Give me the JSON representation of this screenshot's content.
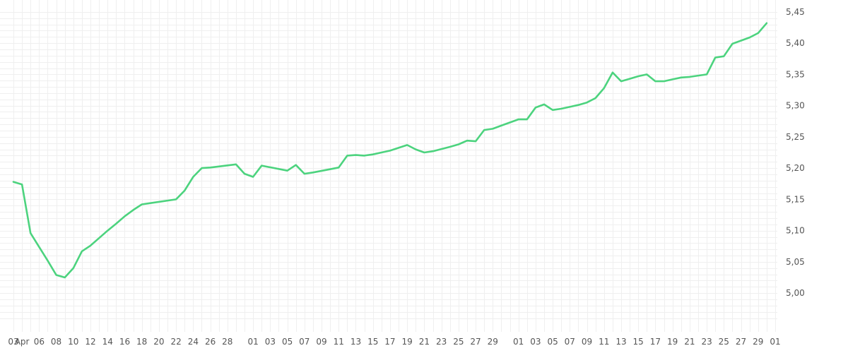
{
  "chart_data": {
    "type": "line",
    "title": "",
    "xlabel": "",
    "ylabel": "",
    "ylim": [
      4.955,
      5.46
    ],
    "y_ticks": [
      "5,00",
      "5,05",
      "5,10",
      "5,15",
      "5,20",
      "5,25",
      "5,30",
      "5,35",
      "5,40",
      "5,45"
    ],
    "y_tick_values": [
      5.0,
      5.05,
      5.1,
      5.15,
      5.2,
      5.25,
      5.3,
      5.35,
      5.4,
      5.45
    ],
    "x_ticks": [
      "03",
      "Apr",
      "06",
      "08",
      "10",
      "12",
      "14",
      "16",
      "18",
      "20",
      "22",
      "24",
      "26",
      "28",
      "01",
      "03",
      "05",
      "07",
      "09",
      "11",
      "13",
      "15",
      "17",
      "19",
      "21",
      "23",
      "25",
      "27",
      "29",
      "01",
      "03",
      "05",
      "07",
      "09",
      "11",
      "13",
      "15",
      "17",
      "19",
      "21",
      "23",
      "25",
      "27",
      "29",
      "01"
    ],
    "x_tick_index": [
      0,
      1,
      3,
      5,
      7,
      9,
      11,
      13,
      15,
      17,
      19,
      21,
      23,
      25,
      28,
      30,
      32,
      34,
      36,
      38,
      40,
      42,
      44,
      46,
      48,
      50,
      52,
      54,
      56,
      59,
      61,
      63,
      65,
      67,
      69,
      71,
      73,
      75,
      77,
      79,
      81,
      83,
      85,
      87,
      89
    ],
    "y_position": "right",
    "grid": true,
    "color": "#4cd37e",
    "series": [
      {
        "x": [
          0,
          1,
          2,
          3,
          4,
          5,
          6,
          7,
          8,
          9,
          10,
          11,
          12,
          13,
          14,
          15,
          16,
          19,
          20,
          21,
          22,
          23,
          26,
          27,
          28,
          29,
          32,
          33,
          34,
          35,
          38,
          39,
          40,
          41,
          42,
          43,
          44,
          46,
          47,
          48,
          49,
          51,
          52,
          53,
          54,
          55,
          56,
          57,
          58,
          59,
          60,
          61,
          62,
          63,
          64,
          65,
          66,
          67,
          68,
          69,
          70,
          71,
          72,
          73,
          74,
          75,
          76,
          77,
          78,
          79,
          80,
          81,
          82,
          83,
          84,
          86,
          87,
          88
        ],
        "values": [
          5.178,
          5.174,
          5.096,
          5.074,
          5.052,
          5.029,
          5.025,
          5.04,
          5.067,
          5.076,
          5.088,
          5.1,
          5.111,
          5.123,
          5.133,
          5.142,
          5.144,
          5.15,
          5.164,
          5.186,
          5.2,
          5.201,
          5.206,
          5.191,
          5.186,
          5.204,
          5.196,
          5.205,
          5.191,
          5.193,
          5.201,
          5.22,
          5.221,
          5.22,
          5.222,
          5.225,
          5.228,
          5.237,
          5.23,
          5.225,
          5.227,
          5.234,
          5.238,
          5.244,
          5.243,
          5.261,
          5.263,
          5.268,
          5.273,
          5.278,
          5.278,
          5.297,
          5.302,
          5.293,
          5.295,
          5.298,
          5.301,
          5.305,
          5.312,
          5.328,
          5.353,
          5.339,
          5.343,
          5.347,
          5.35,
          5.339,
          5.339,
          5.342,
          5.345,
          5.346,
          5.348,
          5.35,
          5.377,
          5.379,
          5.399,
          5.409,
          5.416,
          5.432
        ]
      }
    ]
  }
}
